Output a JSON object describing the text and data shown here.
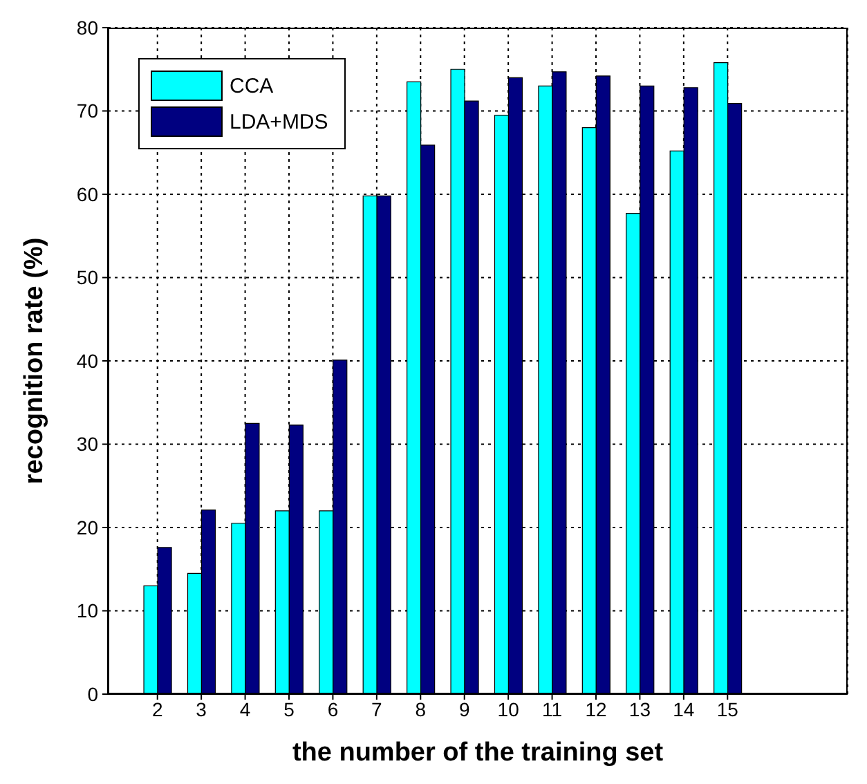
{
  "chart_data": {
    "type": "bar",
    "xlabel": "the number of the training set",
    "ylabel": "recognition rate (%)",
    "categories": [
      "2",
      "3",
      "4",
      "5",
      "6",
      "7",
      "8",
      "9",
      "10",
      "11",
      "12",
      "13",
      "14",
      "15"
    ],
    "series": [
      {
        "name": "CCA",
        "color": "#00ffff",
        "values": [
          13,
          14.5,
          20.5,
          22,
          22,
          59.8,
          73.5,
          75,
          69.5,
          73,
          68,
          57.7,
          65.2,
          75.8
        ]
      },
      {
        "name": "LDA+MDS",
        "color": "#000080",
        "values": [
          17.6,
          22.1,
          32.5,
          32.3,
          40.1,
          59.8,
          65.9,
          71.2,
          74,
          74.7,
          74.2,
          73,
          72.8,
          70.9
        ]
      }
    ],
    "ylim": [
      0,
      80
    ],
    "yticks": [
      0,
      10,
      20,
      30,
      40,
      50,
      60,
      70,
      80
    ],
    "grid": true,
    "legend": "top left"
  }
}
